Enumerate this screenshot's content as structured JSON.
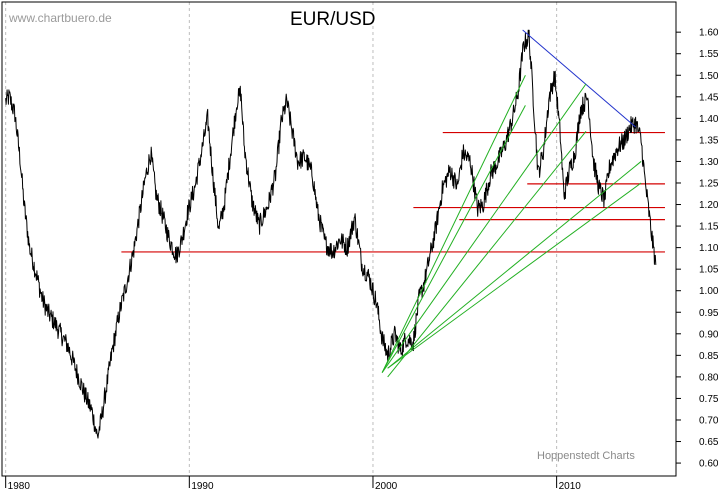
{
  "chart_data": {
    "type": "line",
    "title": "EUR/USD",
    "watermark_top": "www.chartbuero.de",
    "watermark_bottom": "Hoppenstedt Charts",
    "xlim": [
      1979.8,
      2016.5
    ],
    "ylim": [
      0.57,
      1.67
    ],
    "x_ticks": [
      1980,
      1990,
      2000,
      2010
    ],
    "x_gridlines": [
      1980,
      1990,
      2000,
      2010
    ],
    "y_ticks": [
      0.6,
      0.65,
      0.7,
      0.75,
      0.8,
      0.85,
      0.9,
      0.95,
      1.0,
      1.05,
      1.1,
      1.15,
      1.2,
      1.25,
      1.3,
      1.35,
      1.4,
      1.45,
      1.5,
      1.55,
      1.6
    ],
    "y_tick_labels": [
      "0.60",
      "0.65",
      "0.70",
      "0.75",
      "0.80",
      "0.85",
      "0.90",
      "0.95",
      "1.00",
      "1.05",
      "1.10",
      "1.15",
      "1.20",
      "1.25",
      "1.30",
      "1.35",
      "1.40",
      "1.45",
      "1.50",
      "1.55",
      "1.60"
    ],
    "grid": "vertical dashed",
    "colors": {
      "series": "#000000",
      "support_resistance": "#d40000",
      "fan_lines": "#22b022",
      "downtrend": "#2233cc",
      "grid": "#bdbdbd",
      "frame": "#000000"
    },
    "series": [
      {
        "x": [
          1980.0,
          1980.2,
          1980.5,
          1980.8,
          1981.0,
          1981.3,
          1981.6,
          1982.0,
          1982.3,
          1982.6,
          1983.0,
          1983.4,
          1983.8,
          1984.3,
          1984.7,
          1985.0,
          1985.2,
          1985.5,
          1985.8,
          1986.2,
          1986.6,
          1987.0,
          1987.3,
          1987.6,
          1987.9,
          1988.2,
          1988.5,
          1988.9,
          1989.3,
          1989.6,
          1989.9,
          1990.3,
          1990.7,
          1991.0,
          1991.3,
          1991.6,
          1991.9,
          1992.3,
          1992.6,
          1992.8,
          1993.0,
          1993.4,
          1993.8,
          1994.3,
          1994.7,
          1995.0,
          1995.3,
          1995.6,
          1995.9,
          1996.3,
          1996.7,
          1997.0,
          1997.4,
          1997.8,
          1998.2,
          1998.6,
          1999.0,
          1999.4,
          1999.8,
          2000.2,
          2000.5,
          2000.8,
          2001.2,
          2001.5,
          2001.8,
          2002.2,
          2002.5,
          2002.8,
          2003.1,
          2003.4,
          2003.8,
          2004.2,
          2004.6,
          2004.9,
          2005.3,
          2005.7,
          2006.0,
          2006.4,
          2006.8,
          2007.2,
          2007.6,
          2007.9,
          2008.2,
          2008.5,
          2008.8,
          2009.0,
          2009.3,
          2009.6,
          2009.9,
          2010.2,
          2010.4,
          2010.7,
          2011.0,
          2011.3,
          2011.7,
          2012.0,
          2012.3,
          2012.6,
          2012.9,
          2013.3,
          2013.7,
          2014.0,
          2014.3,
          2014.6,
          2014.8,
          2015.0,
          2015.2,
          2015.4
        ],
        "y": [
          1.44,
          1.45,
          1.41,
          1.3,
          1.2,
          1.1,
          1.05,
          0.98,
          0.95,
          0.93,
          0.9,
          0.87,
          0.82,
          0.76,
          0.72,
          0.66,
          0.7,
          0.78,
          0.86,
          0.95,
          1.02,
          1.1,
          1.18,
          1.26,
          1.32,
          1.22,
          1.18,
          1.12,
          1.08,
          1.12,
          1.18,
          1.24,
          1.33,
          1.4,
          1.26,
          1.14,
          1.2,
          1.34,
          1.44,
          1.46,
          1.33,
          1.21,
          1.15,
          1.2,
          1.27,
          1.39,
          1.44,
          1.37,
          1.3,
          1.31,
          1.27,
          1.18,
          1.11,
          1.09,
          1.12,
          1.1,
          1.17,
          1.06,
          1.03,
          0.97,
          0.89,
          0.85,
          0.9,
          0.86,
          0.89,
          0.88,
          0.98,
          1.02,
          1.08,
          1.14,
          1.24,
          1.28,
          1.24,
          1.32,
          1.3,
          1.19,
          1.2,
          1.27,
          1.3,
          1.34,
          1.4,
          1.46,
          1.57,
          1.59,
          1.4,
          1.27,
          1.33,
          1.45,
          1.5,
          1.36,
          1.22,
          1.28,
          1.32,
          1.42,
          1.45,
          1.3,
          1.24,
          1.21,
          1.29,
          1.33,
          1.35,
          1.38,
          1.39,
          1.35,
          1.26,
          1.19,
          1.12,
          1.06
        ]
      }
    ],
    "horizontal_lines": [
      {
        "y": 1.367,
        "x_start": 2003.8,
        "x_end": 2015.9
      },
      {
        "y": 1.248,
        "x_start": 2008.4,
        "x_end": 2015.9
      },
      {
        "y": 1.193,
        "x_start": 2002.2,
        "x_end": 2015.9
      },
      {
        "y": 1.165,
        "x_start": 2004.7,
        "x_end": 2015.9
      },
      {
        "y": 1.09,
        "x_start": 1986.3,
        "x_end": 2015.9
      }
    ],
    "trend_lines": [
      {
        "kind": "down",
        "x1": 2008.15,
        "y1": 1.605,
        "x2": 2014.3,
        "y2": 1.38
      },
      {
        "kind": "fan",
        "x1": 2000.5,
        "y1": 0.81,
        "x2": 2008.3,
        "y2": 1.5
      },
      {
        "kind": "fan",
        "x1": 2000.5,
        "y1": 0.81,
        "x2": 2008.3,
        "y2": 1.43
      },
      {
        "kind": "fan",
        "x1": 2000.5,
        "y1": 0.81,
        "x2": 2011.6,
        "y2": 1.48
      },
      {
        "kind": "fan",
        "x1": 2000.8,
        "y1": 0.8,
        "x2": 2011.6,
        "y2": 1.37
      },
      {
        "kind": "fan",
        "x1": 2000.8,
        "y1": 0.82,
        "x2": 2014.6,
        "y2": 1.3
      },
      {
        "kind": "fan",
        "x1": 2000.8,
        "y1": 0.82,
        "x2": 2014.6,
        "y2": 1.25
      }
    ]
  }
}
